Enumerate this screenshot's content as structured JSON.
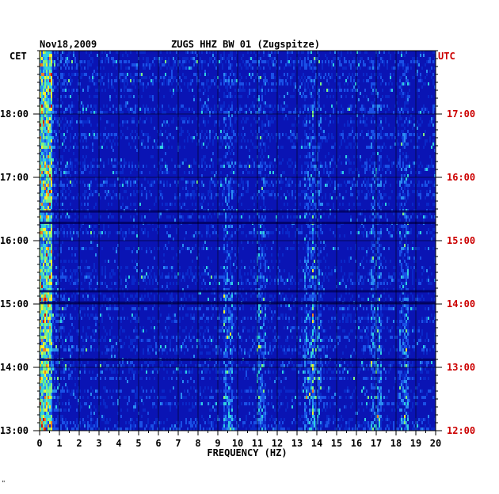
{
  "chart_data": {
    "type": "heatmap",
    "date": "Nov18,2009",
    "title": "ZUGS HHZ BW 01 (Zugspitze)",
    "xlabel": "FREQUENCY (HZ)",
    "xlim": [
      0,
      20
    ],
    "x_ticks": [
      "0",
      "1",
      "2",
      "3",
      "4",
      "5",
      "6",
      "7",
      "8",
      "9",
      "10",
      "11",
      "12",
      "13",
      "14",
      "15",
      "16",
      "17",
      "18",
      "19",
      "20"
    ],
    "left_axis_label": "CET",
    "right_axis_label": "UTC",
    "left_ticks": [
      "18:00",
      "17:00",
      "16:00",
      "15:00",
      "14:00",
      "13:00"
    ],
    "right_ticks": [
      "17:00",
      "16:00",
      "15:00",
      "14:00",
      "13:00",
      "12:00"
    ],
    "right_axis_color": "#cc0000",
    "background_color": "#0a14b4",
    "colorscale": [
      "#000060",
      "#0010a0",
      "#0a28c8",
      "#1a50e6",
      "#2a8cf0",
      "#30d0e0",
      "#80f080",
      "#f0f030",
      "#f08020",
      "#d01010"
    ],
    "low_frequency_energy_band_hz": [
      0,
      0.6
    ],
    "notable_energy_frequencies_hz": [
      9.5,
      11.2,
      13.6,
      14.0,
      17.0,
      18.4
    ],
    "corner_mark": "\""
  }
}
